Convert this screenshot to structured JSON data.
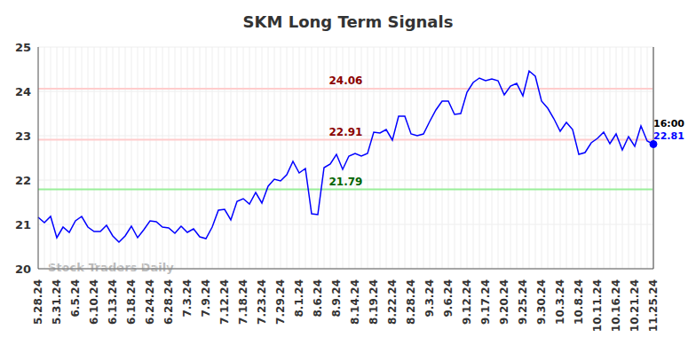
{
  "chart_data": {
    "type": "line",
    "title": "SKM Long Term Signals",
    "watermark": "Stock Traders Daily",
    "categories": [
      "5.28.24",
      null,
      null,
      "5.31.24",
      null,
      null,
      "6.5.24",
      null,
      null,
      "6.10.24",
      null,
      null,
      "6.13.24",
      null,
      null,
      "6.18.24",
      null,
      null,
      "6.24.24",
      null,
      null,
      "6.28.24",
      null,
      null,
      "7.3.24",
      null,
      null,
      "7.9.24",
      null,
      null,
      "7.12.24",
      null,
      null,
      "7.18.24",
      null,
      null,
      "7.23.24",
      null,
      null,
      "7.29.24",
      null,
      null,
      "8.1.24",
      null,
      null,
      "8.6.24",
      null,
      null,
      "8.9.24",
      null,
      null,
      "8.14.24",
      null,
      null,
      "8.19.24",
      null,
      null,
      "8.22.24",
      null,
      null,
      "8.28.24",
      null,
      null,
      "9.3.24",
      null,
      null,
      "9.6.24",
      null,
      null,
      "9.12.24",
      null,
      null,
      "9.17.24",
      null,
      null,
      "9.20.24",
      null,
      null,
      "9.25.24",
      null,
      null,
      "9.30.24",
      null,
      null,
      "10.3.24",
      null,
      null,
      "10.8.24",
      null,
      null,
      "10.11.24",
      null,
      null,
      "10.16.24",
      null,
      null,
      "10.21.24",
      null,
      null,
      "11.25.24"
    ],
    "values": [
      21.16,
      21.04,
      21.18,
      20.7,
      20.94,
      20.82,
      21.08,
      21.18,
      20.94,
      20.84,
      20.84,
      20.98,
      20.74,
      20.6,
      20.74,
      20.96,
      20.7,
      20.88,
      21.08,
      21.06,
      20.94,
      20.92,
      20.8,
      20.96,
      20.82,
      20.9,
      20.72,
      20.68,
      20.94,
      21.32,
      21.34,
      21.1,
      21.52,
      21.58,
      21.46,
      21.72,
      21.48,
      21.86,
      22.02,
      21.98,
      22.12,
      22.42,
      22.16,
      22.26,
      21.24,
      21.22,
      22.28,
      22.36,
      22.58,
      22.24,
      22.54,
      22.6,
      22.54,
      22.6,
      23.08,
      23.06,
      23.14,
      22.9,
      23.44,
      23.44,
      23.04,
      23.0,
      23.04,
      23.32,
      23.58,
      23.78,
      23.78,
      23.48,
      23.5,
      23.98,
      24.2,
      24.3,
      24.24,
      24.28,
      24.24,
      23.92,
      24.12,
      24.18,
      23.9,
      24.46,
      24.34,
      23.78,
      23.62,
      23.38,
      23.1,
      23.3,
      23.14,
      22.58,
      22.62,
      22.84,
      22.94,
      23.08,
      22.82,
      23.04,
      22.68,
      22.98,
      22.76,
      23.22,
      22.88,
      22.81
    ],
    "color": "#0000ff",
    "ylim": [
      20,
      25
    ],
    "yticks": [
      20,
      21,
      22,
      23,
      24,
      25
    ],
    "grid": true,
    "reference_lines": [
      {
        "value": 24.06,
        "label": "24.06",
        "color": "#ffcccc",
        "label_color": "#8b0000"
      },
      {
        "value": 22.91,
        "label": "22.91",
        "color": "#ffcccc",
        "label_color": "#8b0000"
      },
      {
        "value": 21.79,
        "label": "21.79",
        "color": "#99ee99",
        "label_color": "#006400"
      }
    ],
    "end_label": {
      "time": "16:00",
      "value": 22.81
    }
  }
}
